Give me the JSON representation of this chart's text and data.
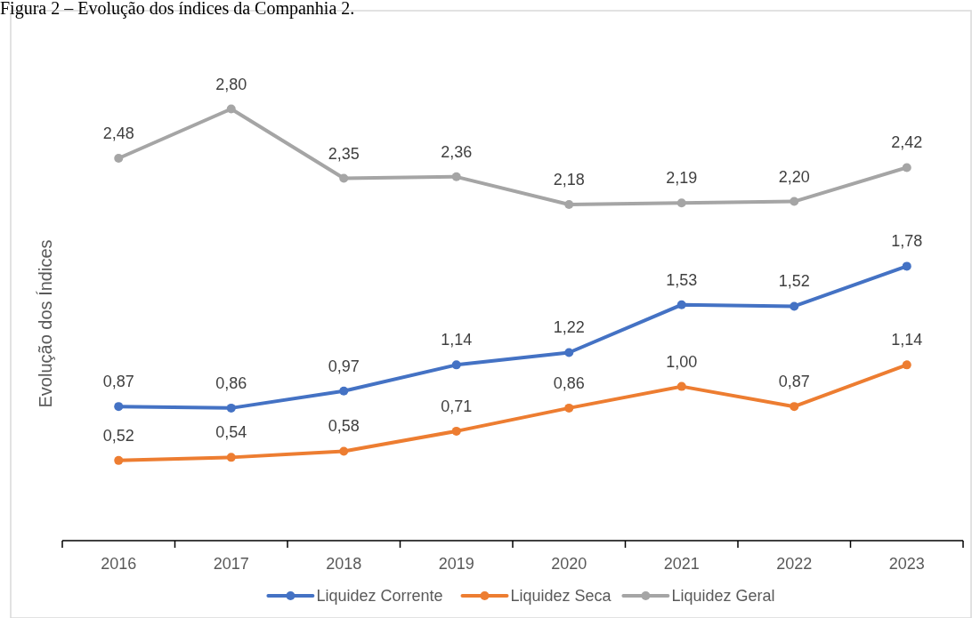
{
  "chart_data": {
    "type": "line",
    "title": "Figura 2 – Evolução dos índices da Companhia 2.",
    "ylabel": "Evolução dos Índices",
    "categories": [
      "2016",
      "2017",
      "2018",
      "2019",
      "2020",
      "2021",
      "2022",
      "2023"
    ],
    "series": [
      {
        "name": "Liquidez Corrente",
        "color": "#4472c4",
        "values": [
          0.87,
          0.86,
          0.97,
          1.14,
          1.22,
          1.53,
          1.52,
          1.78
        ],
        "value_labels": [
          "0,87",
          "0,86",
          "0,97",
          "1,14",
          "1,22",
          "1,53",
          "1,52",
          "1,78"
        ]
      },
      {
        "name": "Liquidez Seca",
        "color": "#ed7d31",
        "values": [
          0.52,
          0.54,
          0.58,
          0.71,
          0.86,
          1.0,
          0.87,
          1.14
        ],
        "value_labels": [
          "0,52",
          "0,54",
          "0,58",
          "0,71",
          "0,86",
          "1,00",
          "0,87",
          "1,14"
        ]
      },
      {
        "name": "Liquidez Geral",
        "color": "#a5a5a5",
        "values": [
          2.48,
          2.8,
          2.35,
          2.36,
          2.18,
          2.19,
          2.2,
          2.42
        ],
        "value_labels": [
          "2,48",
          "2,80",
          "2,35",
          "2,36",
          "2,18",
          "2,19",
          "2,20",
          "2,42"
        ]
      }
    ],
    "marker": "circle",
    "line_style": "solid",
    "legend": "bottom"
  }
}
